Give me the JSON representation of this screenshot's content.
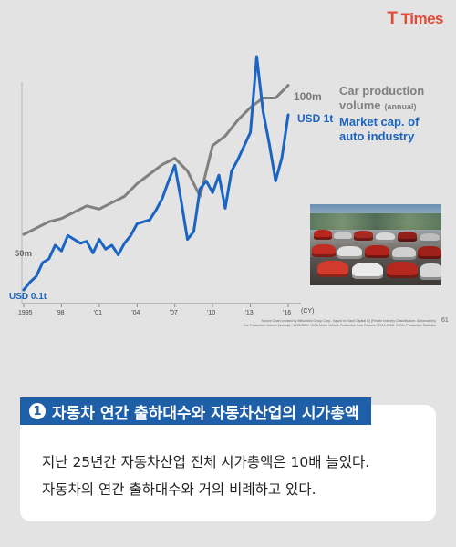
{
  "brand": {
    "logo_first": "T",
    "logo_rest": "Times"
  },
  "chart_data": {
    "type": "line",
    "x_ticks": [
      "1995",
      "'98",
      "'01",
      "'04",
      "'07",
      "'10",
      "'13",
      "'16"
    ],
    "x_unit": "(CY)",
    "left_axis": {
      "low_label": "USD 0.1t",
      "high_label": "USD 1t"
    },
    "right_axis": {
      "low_label": "50m",
      "high_label": "100m"
    },
    "legend": [
      {
        "name": "Car production volume",
        "name_line1": "Car production",
        "name_line2": "volume",
        "note": "(annual)",
        "color": "#808080"
      },
      {
        "name": "Market cap. of auto industry",
        "name_line1": "Market cap. of",
        "name_line2": "auto industry",
        "color": "#1a64c2"
      }
    ],
    "series": [
      {
        "name": "Car production volume",
        "color": "#808080",
        "axis": "right",
        "x": [
          1995,
          1996,
          1997,
          1998,
          1999,
          2000,
          2001,
          2002,
          2003,
          2004,
          2005,
          2006,
          2007,
          2008,
          2009,
          2010,
          2011,
          2012,
          2013,
          2014,
          2015,
          2016
        ],
        "values": [
          56,
          58,
          60,
          61,
          63,
          65,
          64,
          66,
          68,
          72,
          75,
          78,
          80,
          76,
          68,
          84,
          87,
          92,
          96,
          99,
          99,
          103
        ]
      },
      {
        "name": "Market cap. of auto industry",
        "color": "#1a64c2",
        "axis": "left",
        "x": [
          1995.0,
          1995.5,
          1996.0,
          1996.5,
          1997.0,
          1997.5,
          1998.0,
          1998.5,
          1999.0,
          1999.5,
          2000.0,
          2000.5,
          2001.0,
          2001.5,
          2002.0,
          2002.5,
          2003.0,
          2003.5,
          2004.0,
          2004.5,
          2005.0,
          2005.5,
          2006.0,
          2006.5,
          2007.0,
          2007.5,
          2008.0,
          2008.5,
          2009.0,
          2009.5,
          2010.0,
          2010.5,
          2011.0,
          2011.5,
          2012.0,
          2012.5,
          2013.0,
          2013.5,
          2014.0,
          2014.5,
          2015.0,
          2015.5,
          2016.0
        ],
        "values": [
          0.1,
          0.14,
          0.17,
          0.24,
          0.26,
          0.33,
          0.3,
          0.38,
          0.36,
          0.34,
          0.35,
          0.29,
          0.36,
          0.31,
          0.33,
          0.28,
          0.34,
          0.38,
          0.44,
          0.45,
          0.46,
          0.51,
          0.57,
          0.66,
          0.74,
          0.56,
          0.36,
          0.4,
          0.62,
          0.66,
          0.6,
          0.69,
          0.52,
          0.71,
          0.77,
          0.84,
          0.91,
          1.3,
          1.02,
          0.85,
          0.66,
          0.78,
          1.0
        ]
      }
    ],
    "source_note_line1": "Source:Chart created by Mitsubishi Group Corp., based on Vault Capital IQ (Private Industry Classification: Automobiles)",
    "source_note_line2": "Car Production Volume (annual) : 1995-2009: OICA Motor Vehicle Production from Reports / 2010-2016: OICA / Production Statistics",
    "page_number": "61"
  },
  "section": {
    "number": "1",
    "title": "자동차 연간 출하대수와 자동차산업의 시가총액",
    "body_line1": "지난 25년간 자동차산업 전체 시가총액은 10배 늘었다.",
    "body_line2": "자동차의 연간 출하대수와 거의 비례하고 있다."
  }
}
